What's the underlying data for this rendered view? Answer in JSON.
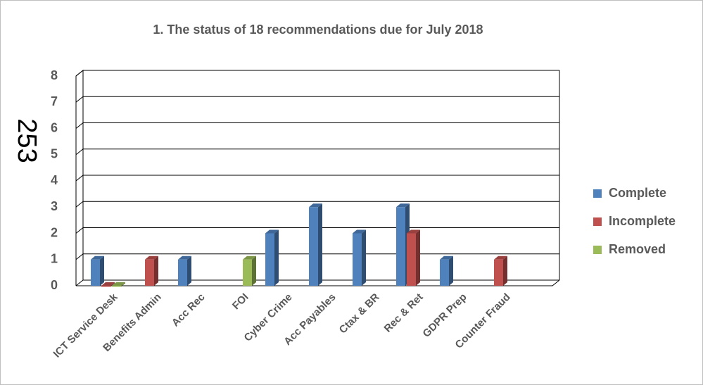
{
  "chart_data": {
    "type": "bar",
    "title": "1. The status of 18 recommendations due for July 2018",
    "annotation": "253",
    "categories": [
      "ICT Service Desk",
      "Benefits Admin",
      "Acc Rec",
      "FOI",
      "Cyber Crime",
      "Acc Payables",
      "Ctax & BR",
      "Rec & Ret",
      "GDPR Prep",
      "Counter Fraud"
    ],
    "series": [
      {
        "name": "Complete",
        "color": "#4f81bd",
        "values": [
          1,
          null,
          1,
          null,
          2,
          3,
          2,
          3,
          1,
          null
        ]
      },
      {
        "name": "Incomplete",
        "color": "#c0504d",
        "values": [
          0,
          1,
          null,
          null,
          null,
          null,
          null,
          2,
          null,
          1
        ]
      },
      {
        "name": "Removed",
        "color": "#9bbb59",
        "values": [
          0,
          null,
          null,
          1,
          null,
          null,
          null,
          null,
          null,
          null
        ]
      }
    ],
    "ylim": [
      0,
      8
    ],
    "yticks": [
      0,
      1,
      2,
      3,
      4,
      5,
      6,
      7,
      8
    ],
    "grid": true,
    "legend": "right"
  }
}
